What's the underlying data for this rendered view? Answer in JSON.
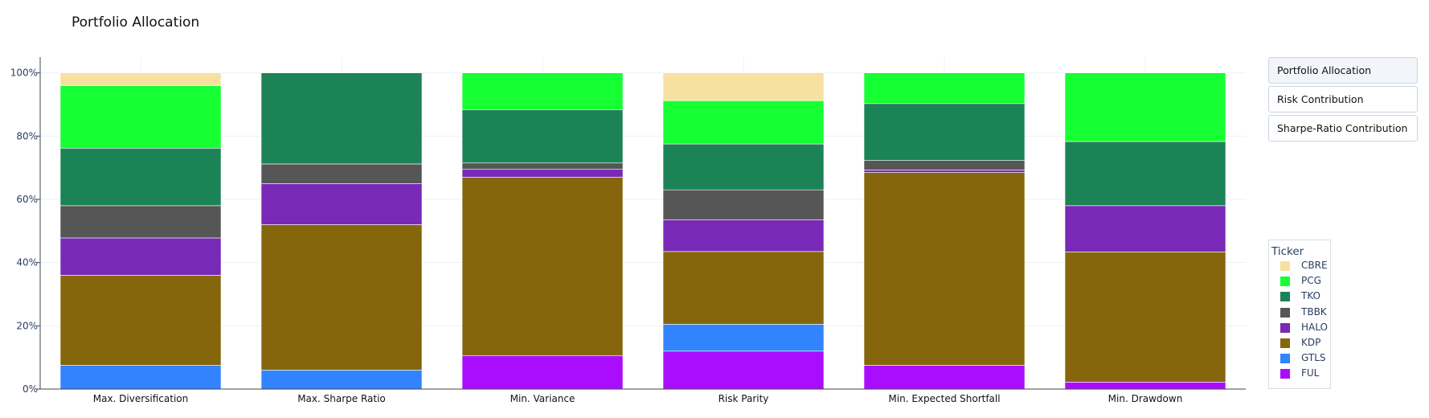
{
  "title": "Portfolio Allocation",
  "menu": {
    "buttons": [
      "Portfolio Allocation",
      "Risk Contribution",
      "Sharpe-Ratio Contribution"
    ],
    "active": 0
  },
  "legend": {
    "title": "Ticker"
  },
  "chart_data": {
    "type": "bar",
    "stacked": true,
    "title": "Portfolio Allocation",
    "categories": [
      "Max. Diversification",
      "Max. Sharpe Ratio",
      "Min. Variance",
      "Risk Parity",
      "Min. Expected Shortfall",
      "Min. Drawdown"
    ],
    "ylim": [
      0,
      1.05
    ],
    "yticks": [
      0,
      0.2,
      0.4,
      0.6,
      0.8,
      1.0
    ],
    "ytick_labels": [
      "0%",
      "20%",
      "40%",
      "60%",
      "80%",
      "100%"
    ],
    "grid": true,
    "legend_title": "Ticker",
    "legend_position": "right",
    "series": [
      {
        "name": "FUL",
        "color": "#aa0dfe",
        "values": [
          0.0,
          0.0,
          0.105,
          0.12,
          0.075,
          0.022
        ]
      },
      {
        "name": "GTLS",
        "color": "#3283fe",
        "values": [
          0.075,
          0.06,
          0.0,
          0.085,
          0.0,
          0.0
        ]
      },
      {
        "name": "KDP",
        "color": "#85660d",
        "values": [
          0.285,
          0.46,
          0.565,
          0.23,
          0.61,
          0.412
        ]
      },
      {
        "name": "HALO",
        "color": "#782ab6",
        "values": [
          0.118,
          0.13,
          0.025,
          0.1,
          0.008,
          0.146
        ]
      },
      {
        "name": "TBBK",
        "color": "#565656",
        "values": [
          0.102,
          0.062,
          0.02,
          0.095,
          0.03,
          0.0
        ]
      },
      {
        "name": "TKO",
        "color": "#1c8356",
        "values": [
          0.182,
          0.288,
          0.168,
          0.145,
          0.18,
          0.203
        ]
      },
      {
        "name": "PCG",
        "color": "#16ff32",
        "values": [
          0.198,
          0.0,
          0.117,
          0.137,
          0.097,
          0.217
        ]
      },
      {
        "name": "CBRE",
        "color": "#f7e1a0",
        "values": [
          0.04,
          0.0,
          0.0,
          0.088,
          0.0,
          0.0
        ]
      }
    ]
  }
}
